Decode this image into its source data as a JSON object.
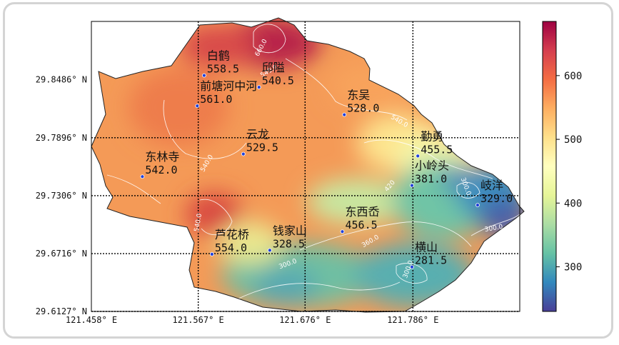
{
  "chart_data": {
    "type": "heatmap",
    "title": "",
    "xlabel": "",
    "ylabel": "",
    "x_ticks": [
      "121.458° E",
      "121.567° E",
      "121.676° E",
      "121.786° E"
    ],
    "y_ticks": [
      "29.8486° N",
      "29.7896° N",
      "29.7306° N",
      "29.6716° N",
      "29.6127° N"
    ],
    "xlim": [
      121.458,
      121.895
    ],
    "ylim": [
      29.6127,
      29.908
    ],
    "grid": true,
    "colormap": "Spectral_r",
    "colorbar": {
      "ticks": [
        "300",
        "400",
        "500",
        "600"
      ],
      "range": [
        230,
        685
      ],
      "colors": [
        "#4a3f97",
        "#3288bd",
        "#66c2a5",
        "#abdda4",
        "#e6f598",
        "#ffffbf",
        "#fee08b",
        "#fdae61",
        "#f46d43",
        "#d53e4f",
        "#9e0142"
      ]
    },
    "contour_labels": [
      "660.0",
      "540.0",
      "540.0",
      "540.0",
      "480",
      "420",
      "360.0",
      "300.0",
      "300.0",
      "300.0",
      "300.0",
      "540.0"
    ],
    "stations": [
      {
        "name": "白鹤",
        "value": "558.5",
        "lon": 121.573,
        "lat": 29.853
      },
      {
        "name": "邱隘",
        "value": "540.5",
        "lon": 121.629,
        "lat": 29.841
      },
      {
        "name": "前塘河中河",
        "value": "561.0",
        "lon": 121.566,
        "lat": 29.822
      },
      {
        "name": "东吴",
        "value": "528.0",
        "lon": 121.716,
        "lat": 29.813
      },
      {
        "name": "云龙",
        "value": "529.5",
        "lon": 121.613,
        "lat": 29.773
      },
      {
        "name": "勤勇",
        "value": "455.5",
        "lon": 121.791,
        "lat": 29.771
      },
      {
        "name": "东林寺",
        "value": "542.0",
        "lon": 121.51,
        "lat": 29.75
      },
      {
        "name": "小岭头",
        "value": "381.0",
        "lon": 121.785,
        "lat": 29.741
      },
      {
        "name": "岐洋",
        "value": "329.0",
        "lon": 121.852,
        "lat": 29.721
      },
      {
        "name": "东西岙",
        "value": "456.5",
        "lon": 121.714,
        "lat": 29.694
      },
      {
        "name": "钱家山",
        "value": "328.5",
        "lon": 121.64,
        "lat": 29.675
      },
      {
        "name": "芦花桥",
        "value": "554.0",
        "lon": 121.581,
        "lat": 29.671
      },
      {
        "name": "横山",
        "value": "281.5",
        "lon": 121.785,
        "lat": 29.658
      }
    ]
  }
}
